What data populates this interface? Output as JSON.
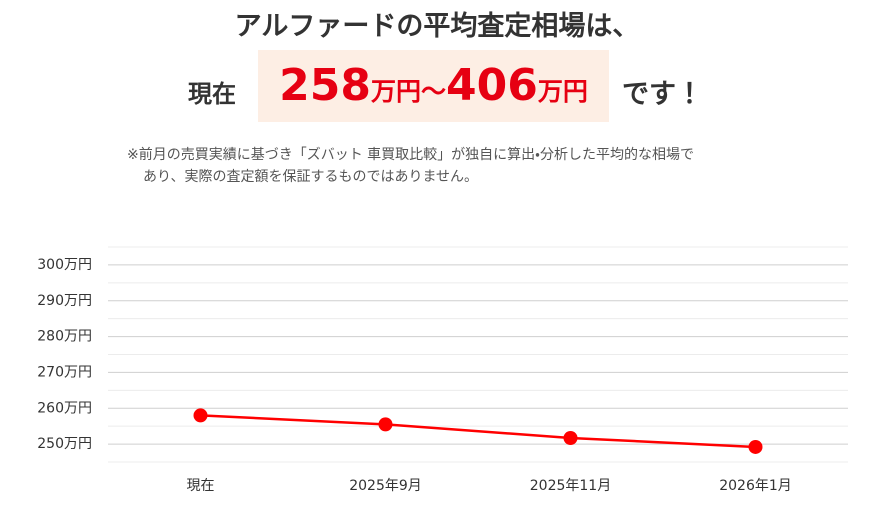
{
  "headline": {
    "line1": "アルファードの平均査定相場は、",
    "prefix": "現在",
    "low": "258",
    "low_unit": "万円",
    "tilde": "〜",
    "high": "406",
    "high_unit": "万円",
    "suffix": "です！"
  },
  "note": [
    "※前月の売買実績に基づき「ズバット 車買取比較」が独自に算出・分析した平均的な相場で",
    "あり、実際の査定額を保証するものではありません。"
  ],
  "chart_data": {
    "type": "line",
    "categories": [
      "現在",
      "2025年9月",
      "2025年11月",
      "2026年1月"
    ],
    "values": [
      258,
      255.5,
      251.7,
      249.2
    ],
    "color": "#ff0000",
    "ylim": [
      245,
      305
    ],
    "yticks": [
      {
        "value": 250,
        "label": "250万円"
      },
      {
        "value": 260,
        "label": "260万円"
      },
      {
        "value": 270,
        "label": "270万円"
      },
      {
        "value": 280,
        "label": "280万円"
      },
      {
        "value": 290,
        "label": "290万円"
      },
      {
        "value": 300,
        "label": "300万円"
      }
    ],
    "minor_grid": [
      245,
      255,
      265,
      275,
      285,
      295,
      305
    ],
    "grid": true
  }
}
